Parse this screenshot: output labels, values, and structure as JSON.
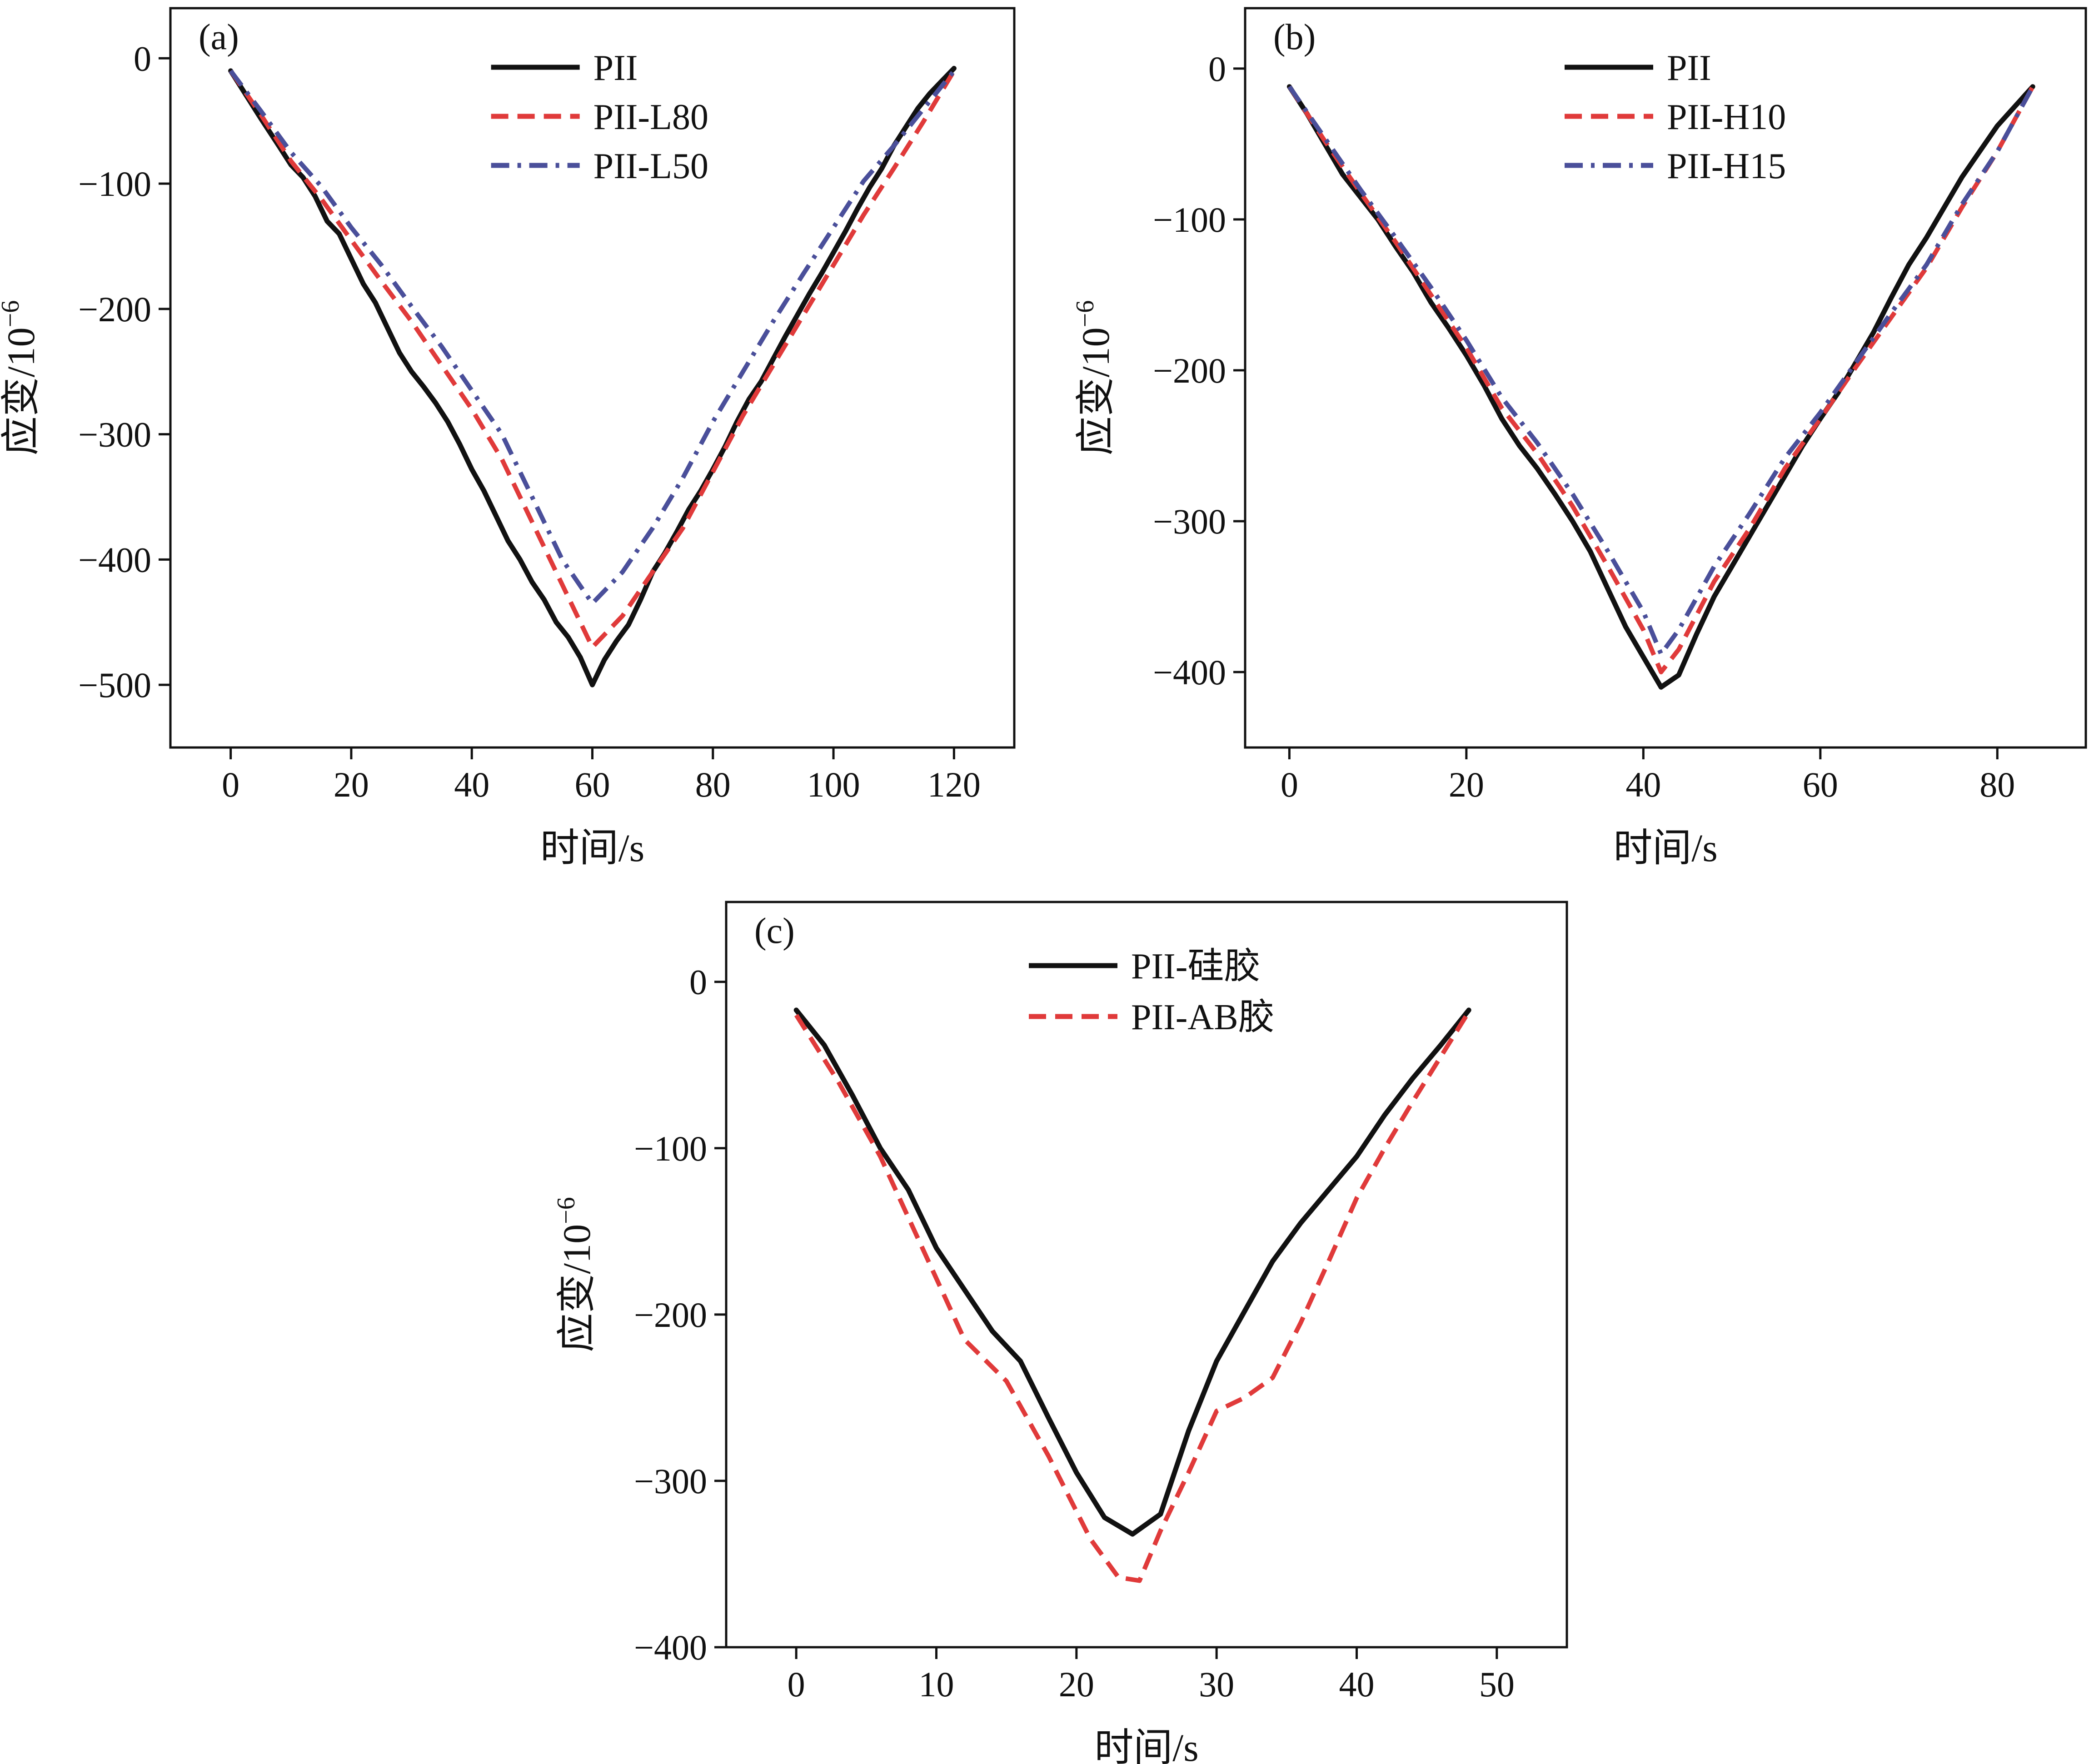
{
  "figure": {
    "colors": {
      "black": "#111111",
      "red": "#e03a3a",
      "blue": "#4a4f9a"
    }
  },
  "chart_data": [
    {
      "type": "line",
      "panel_label": "(a)",
      "xlabel": "时间/s",
      "ylabel": "应变/10",
      "ylabel_sup": "−6",
      "xlim": [
        -10,
        130
      ],
      "ylim": [
        -550,
        40
      ],
      "xticks": [
        0,
        20,
        40,
        60,
        80,
        100,
        120
      ],
      "xtick_labels": [
        "0",
        "20",
        "40",
        "60",
        "80",
        "100",
        "120"
      ],
      "yticks": [
        0,
        -100,
        -200,
        -300,
        -400,
        -500
      ],
      "ytick_labels": [
        "0",
        "−100",
        "−200",
        "−300",
        "−400",
        "−500"
      ],
      "legend_position": "top-right",
      "series": [
        {
          "name": "PII",
          "style": "solid",
          "color": "#111111",
          "x": [
            0,
            5,
            8,
            10,
            12,
            14,
            16,
            18,
            20,
            22,
            24,
            26,
            28,
            30,
            32,
            34,
            36,
            38,
            40,
            42,
            44,
            46,
            48,
            50,
            52,
            54,
            56,
            58,
            60,
            62,
            64,
            66,
            68,
            70,
            72,
            74,
            76,
            78,
            80,
            82,
            84,
            86,
            88,
            90,
            92,
            94,
            96,
            98,
            100,
            102,
            104,
            106,
            108,
            110,
            112,
            114,
            116,
            118,
            120
          ],
          "y": [
            -10,
            -48,
            -70,
            -85,
            -95,
            -110,
            -130,
            -140,
            -160,
            -180,
            -195,
            -215,
            -235,
            -250,
            -262,
            -275,
            -290,
            -308,
            -328,
            -345,
            -365,
            -385,
            -400,
            -418,
            -432,
            -450,
            -462,
            -478,
            -500,
            -480,
            -465,
            -452,
            -432,
            -410,
            -395,
            -378,
            -360,
            -345,
            -328,
            -310,
            -290,
            -272,
            -258,
            -240,
            -222,
            -205,
            -188,
            -172,
            -155,
            -138,
            -120,
            -103,
            -88,
            -70,
            -55,
            -40,
            -28,
            -18,
            -8
          ]
        },
        {
          "name": "PII-L80",
          "style": "dashed",
          "color": "#e03a3a",
          "x": [
            0,
            5,
            10,
            15,
            20,
            25,
            30,
            35,
            40,
            45,
            50,
            55,
            60,
            65,
            70,
            75,
            80,
            85,
            90,
            95,
            100,
            105,
            110,
            115,
            120
          ],
          "y": [
            -10,
            -45,
            -82,
            -112,
            -145,
            -178,
            -210,
            -245,
            -280,
            -320,
            -370,
            -420,
            -470,
            -445,
            -410,
            -375,
            -330,
            -285,
            -245,
            -205,
            -165,
            -125,
            -88,
            -50,
            -10
          ]
        },
        {
          "name": "PII-L50",
          "style": "dashdot",
          "color": "#4a4f9a",
          "x": [
            0,
            5,
            10,
            15,
            20,
            25,
            30,
            35,
            40,
            45,
            50,
            55,
            60,
            65,
            70,
            75,
            80,
            85,
            90,
            95,
            100,
            105,
            110,
            115,
            120
          ],
          "y": [
            -10,
            -42,
            -75,
            -102,
            -135,
            -165,
            -198,
            -230,
            -265,
            -300,
            -350,
            -400,
            -435,
            -410,
            -375,
            -335,
            -290,
            -250,
            -210,
            -172,
            -135,
            -98,
            -70,
            -40,
            -10
          ]
        }
      ]
    },
    {
      "type": "line",
      "panel_label": "(b)",
      "xlabel": "时间/s",
      "ylabel": "应变/10",
      "ylabel_sup": "−6",
      "xlim": [
        -5,
        90
      ],
      "ylim": [
        -450,
        40
      ],
      "xticks": [
        0,
        20,
        40,
        60,
        80
      ],
      "xtick_labels": [
        "0",
        "20",
        "40",
        "60",
        "80"
      ],
      "yticks": [
        0,
        -100,
        -200,
        -300,
        -400
      ],
      "ytick_labels": [
        "0",
        "−100",
        "−200",
        "−300",
        "−400"
      ],
      "legend_position": "top-right",
      "series": [
        {
          "name": "PII",
          "style": "solid",
          "color": "#111111",
          "x": [
            0,
            2,
            4,
            6,
            8,
            10,
            12,
            14,
            16,
            18,
            20,
            22,
            24,
            26,
            28,
            30,
            32,
            34,
            36,
            38,
            40,
            42,
            44,
            46,
            48,
            50,
            52,
            54,
            56,
            58,
            60,
            62,
            64,
            66,
            68,
            70,
            72,
            74,
            76,
            78,
            80,
            82,
            84
          ],
          "y": [
            -12,
            -30,
            -50,
            -70,
            -85,
            -100,
            -118,
            -135,
            -155,
            -172,
            -190,
            -210,
            -232,
            -250,
            -265,
            -282,
            -300,
            -320,
            -345,
            -370,
            -390,
            -410,
            -402,
            -375,
            -350,
            -330,
            -310,
            -290,
            -270,
            -250,
            -232,
            -215,
            -195,
            -175,
            -152,
            -130,
            -112,
            -92,
            -72,
            -55,
            -38,
            -25,
            -12
          ]
        },
        {
          "name": "PII-H10",
          "style": "dashed",
          "color": "#e03a3a",
          "x": [
            0,
            4,
            8,
            12,
            16,
            20,
            24,
            28,
            32,
            36,
            40,
            42,
            44,
            48,
            52,
            56,
            60,
            64,
            68,
            72,
            76,
            80,
            84
          ],
          "y": [
            -12,
            -48,
            -82,
            -115,
            -150,
            -185,
            -225,
            -255,
            -290,
            -330,
            -372,
            -400,
            -385,
            -340,
            -305,
            -265,
            -232,
            -198,
            -165,
            -132,
            -92,
            -55,
            -12
          ]
        },
        {
          "name": "PII-H15",
          "style": "dashdot",
          "color": "#4a4f9a",
          "x": [
            0,
            4,
            8,
            12,
            16,
            20,
            24,
            28,
            32,
            36,
            40,
            42,
            44,
            48,
            52,
            56,
            60,
            64,
            68,
            72,
            76,
            80,
            84
          ],
          "y": [
            -12,
            -46,
            -80,
            -112,
            -145,
            -180,
            -218,
            -248,
            -282,
            -320,
            -360,
            -388,
            -372,
            -330,
            -295,
            -258,
            -228,
            -195,
            -162,
            -130,
            -90,
            -55,
            -12
          ]
        }
      ]
    },
    {
      "type": "line",
      "panel_label": "(c)",
      "xlabel": "时间/s",
      "ylabel": "应变/10",
      "ylabel_sup": "−6",
      "xlim": [
        -5,
        55
      ],
      "ylim": [
        -400,
        48
      ],
      "xticks": [
        0,
        10,
        20,
        30,
        40,
        50
      ],
      "xtick_labels": [
        "0",
        "10",
        "20",
        "30",
        "40",
        "50"
      ],
      "yticks": [
        0,
        -100,
        -200,
        -300,
        -400
      ],
      "ytick_labels": [
        "0",
        "−100",
        "−200",
        "−300",
        "−400"
      ],
      "legend_position": "top-right",
      "series": [
        {
          "name": "PII-硅胶",
          "style": "solid",
          "color": "#111111",
          "x": [
            0,
            2,
            4,
            6,
            8,
            10,
            12,
            14,
            16,
            18,
            20,
            22,
            24,
            26,
            28,
            30,
            32,
            34,
            36,
            38,
            40,
            42,
            44,
            46,
            48
          ],
          "y": [
            -17,
            -38,
            -68,
            -100,
            -125,
            -160,
            -185,
            -210,
            -228,
            -262,
            -295,
            -322,
            -332,
            -320,
            -270,
            -228,
            -198,
            -168,
            -145,
            -125,
            -105,
            -80,
            -58,
            -38,
            -17
          ]
        },
        {
          "name": "PII-AB胶",
          "style": "dashed",
          "color": "#e03a3a",
          "x": [
            0,
            3,
            6,
            9,
            12,
            15,
            18,
            21,
            23,
            24.5,
            26,
            28,
            30,
            32,
            34,
            36,
            38,
            40,
            42,
            44,
            46,
            48
          ],
          "y": [
            -20,
            -60,
            -105,
            -160,
            -215,
            -240,
            -285,
            -335,
            -358,
            -360,
            -330,
            -295,
            -258,
            -250,
            -238,
            -205,
            -168,
            -130,
            -100,
            -72,
            -45,
            -18
          ]
        }
      ]
    }
  ]
}
